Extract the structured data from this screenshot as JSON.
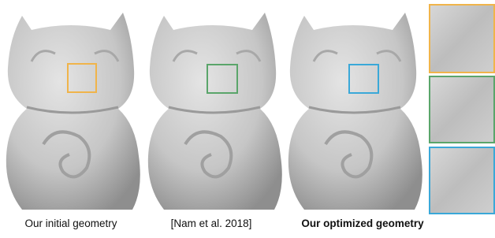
{
  "captions": [
    "Our initial geometry",
    "[Nam et al. 2018]",
    "Our optimized geometry"
  ]
}
